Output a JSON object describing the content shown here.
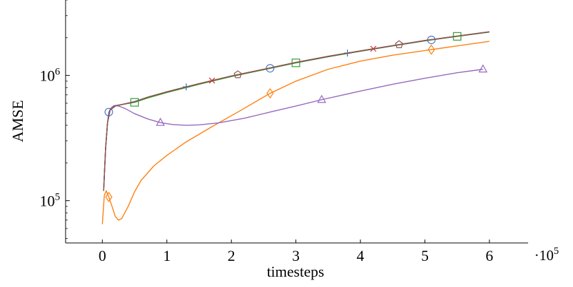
{
  "chart_data": {
    "type": "line",
    "title": "",
    "xlabel": "timesteps",
    "ylabel": "AMSE",
    "x_scale_label": "·10",
    "x_scale_exponent": "5",
    "xlim": [
      -0.57,
      6.6
    ],
    "ylim": [
      46000,
      4000000
    ],
    "yscale": "log",
    "xticks": [
      0,
      1,
      2,
      3,
      4,
      5,
      6
    ],
    "xtick_labels": [
      "0",
      "1",
      "2",
      "3",
      "4",
      "5",
      "6"
    ],
    "yticks": [
      100000,
      1000000
    ],
    "ytick_labels": [
      {
        "base": "10",
        "exp": "5"
      },
      {
        "base": "10",
        "exp": "6"
      }
    ],
    "grid": false,
    "legend": "none",
    "series": [
      {
        "color": "#4477cc",
        "marker": "circle",
        "x": [
          0.02,
          0.05,
          0.08,
          0.1,
          0.15,
          0.2,
          0.3,
          0.5,
          0.7,
          1.0,
          1.3,
          1.7,
          2.1,
          2.6,
          3.0,
          3.5,
          4.0,
          4.5,
          5.0,
          5.5,
          6.0
        ],
        "y": [
          120000,
          260000,
          420000,
          510000,
          560000,
          575000,
          585000,
          620000,
          670000,
          740000,
          810000,
          905000,
          1010000,
          1140000,
          1260000,
          1410000,
          1560000,
          1720000,
          1890000,
          2050000,
          2220000
        ],
        "marker_x": [
          0.1,
          2.6,
          5.1
        ]
      },
      {
        "color": "#ff7f0e",
        "marker": "diamond",
        "x": [
          0.0,
          0.03,
          0.06,
          0.1,
          0.15,
          0.2,
          0.25,
          0.3,
          0.4,
          0.5,
          0.6,
          0.8,
          1.0,
          1.3,
          1.7,
          2.1,
          2.6,
          3.0,
          3.5,
          4.0,
          4.5,
          5.0,
          5.5,
          6.0
        ],
        "y": [
          65000,
          110000,
          120000,
          107000,
          90000,
          75000,
          70000,
          72000,
          90000,
          118000,
          145000,
          190000,
          230000,
          295000,
          390000,
          510000,
          720000,
          900000,
          1120000,
          1300000,
          1450000,
          1580000,
          1720000,
          1870000
        ],
        "marker_x": [
          0.1,
          2.6,
          5.1
        ]
      },
      {
        "color": "#2ca02c",
        "marker": "square",
        "x": [
          0.02,
          0.05,
          0.08,
          0.12,
          0.2,
          0.3,
          0.5,
          0.7,
          1.0,
          1.5,
          2.0,
          2.5,
          3.0,
          3.5,
          4.0,
          4.5,
          5.0,
          5.5,
          6.0
        ],
        "y": [
          120000,
          260000,
          420000,
          530000,
          570000,
          585000,
          610000,
          660000,
          730000,
          850000,
          980000,
          1110000,
          1260000,
          1410000,
          1560000,
          1720000,
          1890000,
          2050000,
          2220000
        ],
        "marker_x": [
          0.5,
          3.0,
          5.5
        ]
      },
      {
        "color": "#1f77b4",
        "marker": "plus",
        "x": [
          0.02,
          0.05,
          0.08,
          0.12,
          0.2,
          0.3,
          0.5,
          0.7,
          1.0,
          1.5,
          2.0,
          2.5,
          3.0,
          3.5,
          4.0,
          4.5,
          5.0,
          5.5,
          6.0
        ],
        "y": [
          120000,
          260000,
          420000,
          530000,
          570000,
          585000,
          615000,
          670000,
          740000,
          860000,
          990000,
          1120000,
          1270000,
          1420000,
          1570000,
          1730000,
          1900000,
          2060000,
          2230000
        ],
        "marker_x": [
          1.3,
          3.8
        ]
      },
      {
        "color": "#d62728",
        "marker": "cross",
        "x": [
          0.02,
          0.05,
          0.08,
          0.12,
          0.2,
          0.3,
          0.5,
          0.7,
          1.0,
          1.5,
          2.0,
          2.5,
          3.0,
          3.5,
          4.0,
          4.5,
          5.0,
          5.5,
          6.0
        ],
        "y": [
          120000,
          260000,
          420000,
          530000,
          570000,
          585000,
          615000,
          670000,
          740000,
          860000,
          990000,
          1120000,
          1270000,
          1420000,
          1570000,
          1730000,
          1900000,
          2060000,
          2230000
        ],
        "marker_x": [
          1.7,
          4.2
        ]
      },
      {
        "color": "#9467bd",
        "marker": "triangle",
        "x": [
          0.02,
          0.05,
          0.08,
          0.12,
          0.18,
          0.25,
          0.35,
          0.5,
          0.7,
          0.9,
          1.1,
          1.3,
          1.5,
          1.8,
          2.2,
          2.6,
          3.0,
          3.4,
          4.0,
          4.5,
          5.0,
          5.5,
          5.9
        ],
        "y": [
          120000,
          260000,
          420000,
          540000,
          575000,
          570000,
          545000,
          495000,
          450000,
          420000,
          405000,
          400000,
          403000,
          418000,
          455000,
          510000,
          570000,
          640000,
          750000,
          850000,
          950000,
          1050000,
          1120000
        ],
        "marker_x": [
          0.9,
          3.4,
          5.9
        ]
      },
      {
        "color": "#8c564b",
        "marker": "pentagon",
        "x": [
          0.02,
          0.05,
          0.08,
          0.12,
          0.2,
          0.3,
          0.5,
          0.7,
          1.0,
          1.5,
          2.0,
          2.5,
          3.0,
          3.5,
          4.0,
          4.5,
          5.0,
          5.5,
          6.0
        ],
        "y": [
          120000,
          260000,
          420000,
          530000,
          570000,
          585000,
          615000,
          670000,
          740000,
          860000,
          990000,
          1120000,
          1270000,
          1420000,
          1570000,
          1730000,
          1900000,
          2060000,
          2230000
        ],
        "marker_x": [
          2.1,
          4.6
        ]
      }
    ]
  }
}
